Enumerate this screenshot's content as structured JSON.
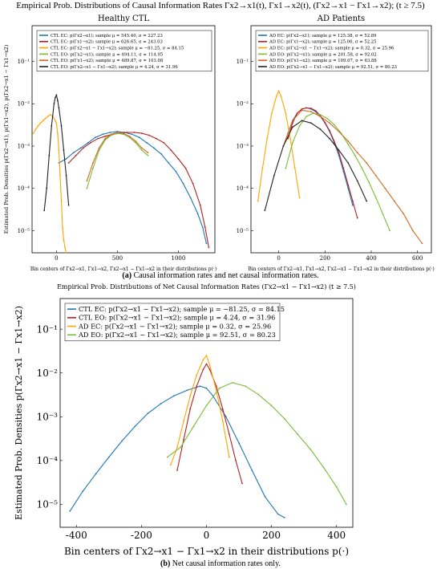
{
  "figure": {
    "top_title": "Empirical Prob. Distributions of Causal Information Rates Γx2→x1(t), Γx1→x2(t), (Γx2→x1 − Γx1→x2); (t ≥ 7.5)",
    "caption_a_label": "(a)",
    "caption_a_text": "Causal information rates and net causal information rates.",
    "caption_b_label": "(b)",
    "caption_b_text": "Net causal information rates only."
  },
  "chart_data": [
    {
      "type": "line",
      "title": "Healthy CTL",
      "xlabel": "Bin centers of Γx2→x1, Γx1→x2, Γx2→x1 − Γx1→x2 in their distributions p(·)",
      "ylabel": "Estimated Prob. Densities p(Γx2→x1), p(Γx1→x2), p(Γx2→x1 − Γx1→x2)",
      "log_y": true,
      "xlim": [
        -200,
        1300
      ],
      "ylim": [
        3e-06,
        0.7
      ],
      "xticks": [
        0,
        500,
        1000
      ],
      "yticks": [
        1e-05,
        0.0001,
        0.001,
        0.01,
        0.1
      ],
      "legend_position": "top-left",
      "series": [
        {
          "name": "CTL EC: p(Γx2→x1); sample μ = 545.40, σ = 227.23",
          "color": "#1f77b4",
          "x": [
            20,
            80,
            140,
            200,
            260,
            320,
            380,
            440,
            500,
            560,
            620,
            680,
            740,
            800,
            860,
            920,
            980,
            1040,
            1100,
            1160,
            1200,
            1230
          ],
          "y": [
            0.0004,
            0.0005,
            0.0007,
            0.0009,
            0.0012,
            0.0016,
            0.0019,
            0.0021,
            0.0022,
            0.0021,
            0.0019,
            0.0016,
            0.0012,
            0.0009,
            0.00065,
            0.0004,
            0.00025,
            0.00013,
            6e-05,
            2.5e-05,
            1.2e-05,
            5e-06
          ]
        },
        {
          "name": "CTL EC: p(Γx1→x2); sample μ = 626.65, σ = 243.03",
          "color": "#b22222",
          "x": [
            100,
            160,
            220,
            280,
            340,
            400,
            460,
            520,
            580,
            640,
            700,
            760,
            820,
            880,
            940,
            1000,
            1060,
            1120,
            1180,
            1220,
            1250
          ],
          "y": [
            0.0004,
            0.0006,
            0.0009,
            0.0012,
            0.0015,
            0.0017,
            0.0019,
            0.002,
            0.0021,
            0.0021,
            0.002,
            0.0018,
            0.0015,
            0.0012,
            0.0008,
            0.0005,
            0.0003,
            0.00013,
            4e-05,
            1.2e-05,
            4e-06
          ]
        },
        {
          "name": "CTL EC: p(Γx2→x1 − Γx1→x2); sample μ = −81.25, σ = 84.15",
          "color": "#ffa500",
          "x": [
            -190,
            -170,
            -150,
            -130,
            -110,
            -90,
            -70,
            -50,
            -30,
            -10,
            0,
            10,
            20,
            30,
            40,
            50,
            60,
            70,
            80
          ],
          "y": [
            0.002,
            0.0025,
            0.003,
            0.0035,
            0.004,
            0.0045,
            0.005,
            0.0055,
            0.005,
            0.004,
            0.0035,
            0.002,
            0.0008,
            0.0002,
            5e-05,
            1.2e-05,
            6e-06,
            4e-06,
            3e-06
          ]
        },
        {
          "name": "CTL EO: p(Γx2→x1); sample μ = 494.11, σ = 114.95",
          "color": "#7cbb3a",
          "x": [
            250,
            300,
            350,
            400,
            450,
            500,
            550,
            600,
            650,
            700,
            750
          ],
          "y": [
            0.0001,
            0.0003,
            0.0008,
            0.0014,
            0.0018,
            0.002,
            0.0019,
            0.0016,
            0.0012,
            0.0008,
            0.0006
          ]
        },
        {
          "name": "CTL EO: p(Γx1→x2); sample μ = 489.87, σ = 103.08",
          "color": "#d2691e",
          "x": [
            250,
            300,
            350,
            400,
            450,
            500,
            550,
            600,
            650,
            700,
            750
          ],
          "y": [
            0.00015,
            0.0004,
            0.0009,
            0.0015,
            0.0019,
            0.0021,
            0.002,
            0.0017,
            0.0013,
            0.0009,
            0.0007
          ]
        },
        {
          "name": "CTL EO: p(Γx2→x1 − Γx1→x2); sample μ = 4.24, σ = 31.96",
          "color": "#222222",
          "x": [
            -100,
            -80,
            -60,
            -40,
            -20,
            -10,
            0,
            10,
            20,
            40,
            60,
            80,
            100
          ],
          "y": [
            3e-05,
            0.0001,
            0.0006,
            0.003,
            0.01,
            0.014,
            0.016,
            0.012,
            0.008,
            0.003,
            0.0008,
            0.0002,
            4e-05
          ]
        }
      ]
    },
    {
      "type": "line",
      "title": "AD Patients",
      "xlabel": "Bin centers of Γx2→x1, Γx1→x2, Γx2→x1 − Γx1→x2 in their distributions p(·)",
      "log_y": true,
      "xlim": [
        -120,
        660
      ],
      "ylim": [
        3e-06,
        0.7
      ],
      "xticks": [
        0,
        200,
        400,
        600
      ],
      "yticks": [
        1e-05,
        0.0001,
        0.001,
        0.01,
        0.1
      ],
      "legend_position": "top",
      "series": [
        {
          "name": "AD EC: p(Γx2→x1); sample μ = 125.38, σ = 52.89",
          "color": "#1f77b4",
          "x": [
            40,
            60,
            80,
            100,
            120,
            140,
            160,
            180,
            200,
            220,
            240,
            260,
            280,
            300,
            320
          ],
          "y": [
            0.002,
            0.004,
            0.006,
            0.0075,
            0.008,
            0.0075,
            0.0065,
            0.005,
            0.0035,
            0.0022,
            0.0012,
            0.0006,
            0.00025,
            0.0001,
            4e-05
          ]
        },
        {
          "name": "AD EC: p(Γx1→x2); sample μ = 125.06, σ = 52.25",
          "color": "#b22222",
          "x": [
            40,
            60,
            80,
            100,
            120,
            140,
            160,
            180,
            200,
            220,
            240,
            260,
            280,
            300,
            320,
            340
          ],
          "y": [
            0.0015,
            0.0035,
            0.006,
            0.0075,
            0.008,
            0.0078,
            0.0068,
            0.0052,
            0.0036,
            0.0023,
            0.0013,
            0.0007,
            0.0003,
            0.00012,
            5e-05,
            2e-05
          ]
        },
        {
          "name": "AD EC: p(Γx2→x1 − Γx1→x2); sample μ = 0.32, σ = 25.96",
          "color": "#ffa500",
          "x": [
            -90,
            -70,
            -50,
            -30,
            -10,
            0,
            10,
            30,
            50,
            70,
            90
          ],
          "y": [
            5e-05,
            0.0003,
            0.0015,
            0.006,
            0.015,
            0.02,
            0.015,
            0.006,
            0.0015,
            0.0003,
            6e-05
          ]
        },
        {
          "name": "AD EO: p(Γx2→x1); sample μ = 201.58, σ = 92.02",
          "color": "#7cbb3a",
          "x": [
            30,
            60,
            90,
            120,
            150,
            180,
            210,
            240,
            270,
            300,
            330,
            360,
            390,
            420,
            450,
            480
          ],
          "y": [
            0.0003,
            0.0012,
            0.003,
            0.005,
            0.006,
            0.0055,
            0.0045,
            0.0032,
            0.002,
            0.0011,
            0.0006,
            0.0003,
            0.00014,
            6e-05,
            2.5e-05,
            1e-05
          ]
        },
        {
          "name": "AD EO: p(Γx1→x2); sample μ = 109.07, σ = 63.88",
          "color": "#d2691e",
          "x": [
            20,
            60,
            100,
            140,
            180,
            220,
            260,
            300,
            340,
            380,
            420,
            460,
            500,
            540,
            580,
            620
          ],
          "y": [
            0.001,
            0.004,
            0.007,
            0.0065,
            0.005,
            0.0035,
            0.0022,
            0.0013,
            0.0007,
            0.0004,
            0.0002,
            0.0001,
            5e-05,
            2.5e-05,
            1e-05,
            5e-06
          ]
        },
        {
          "name": "AD EO: p(Γx2→x1 − Γx1→x2); sample μ = 92.51, σ = 80.23",
          "color": "#222222",
          "x": [
            -60,
            -20,
            20,
            60,
            100,
            140,
            180,
            220,
            260,
            300,
            340,
            380
          ],
          "y": [
            3e-05,
            0.0002,
            0.001,
            0.0028,
            0.004,
            0.0035,
            0.0025,
            0.0015,
            0.0008,
            0.0004,
            0.00015,
            5e-05
          ]
        }
      ]
    },
    {
      "type": "line",
      "title": "Empirical Prob. Distributions of Net Causal Information Rates (Γx2→x1 − Γx1→x2) (t ≥ 7.5)",
      "xlabel": "Bin centers of Γx2→x1 − Γx1→x2 in their distributions p(·)",
      "ylabel": "Estimated Prob. Densities p(Γx2→x1 − Γx1→x2)",
      "log_y": true,
      "xlim": [
        -450,
        450
      ],
      "ylim": [
        3e-06,
        0.5
      ],
      "xticks": [
        -400,
        -200,
        0,
        200,
        400
      ],
      "yticks": [
        1e-05,
        0.0001,
        0.001,
        0.01,
        0.1
      ],
      "legend_position": "top-left",
      "series": [
        {
          "name": "CTL EC: p(Γx2→x1 − Γx1→x2); sample μ = −81.25, σ = 84.15",
          "color": "#1f77b4",
          "x": [
            -420,
            -380,
            -340,
            -300,
            -260,
            -220,
            -180,
            -140,
            -100,
            -60,
            -20,
            0,
            20,
            60,
            100,
            140,
            180,
            220,
            240
          ],
          "y": [
            7e-06,
            2e-05,
            5e-05,
            0.00012,
            0.00028,
            0.0006,
            0.0012,
            0.002,
            0.003,
            0.004,
            0.005,
            0.0045,
            0.003,
            0.001,
            0.00025,
            6e-05,
            1.5e-05,
            6e-06,
            5e-06
          ]
        },
        {
          "name": "CTL EO: p(Γx2→x1 − Γx1→x2); sample μ = 4.24, σ = 31.96",
          "color": "#b22222",
          "x": [
            -90,
            -70,
            -50,
            -30,
            -10,
            0,
            10,
            30,
            50,
            70,
            90,
            110
          ],
          "y": [
            6e-05,
            0.0003,
            0.0015,
            0.005,
            0.012,
            0.016,
            0.012,
            0.005,
            0.0015,
            0.0004,
            0.0001,
            3e-05
          ]
        },
        {
          "name": "AD EC: p(Γx2→x1 − Γx1→x2); sample μ = 0.32, σ = 25.96",
          "color": "#ffa500",
          "x": [
            -110,
            -90,
            -70,
            -50,
            -30,
            -10,
            0,
            10,
            30,
            50,
            70
          ],
          "y": [
            8e-05,
            0.0002,
            0.0008,
            0.003,
            0.009,
            0.02,
            0.025,
            0.015,
            0.004,
            0.0008,
            0.00012
          ]
        },
        {
          "name": "AD EO: p(Γx2→x1 − Γx1→x2); sample μ = 92.51, σ = 80.23",
          "color": "#7cbb3a",
          "x": [
            -120,
            -80,
            -40,
            0,
            40,
            80,
            120,
            160,
            200,
            240,
            280,
            320,
            360,
            400,
            430
          ],
          "y": [
            0.00012,
            0.0002,
            0.0006,
            0.0018,
            0.0045,
            0.006,
            0.005,
            0.0032,
            0.0018,
            0.0009,
            0.0004,
            0.00018,
            7e-05,
            2.5e-05,
            1e-05
          ]
        }
      ]
    }
  ]
}
